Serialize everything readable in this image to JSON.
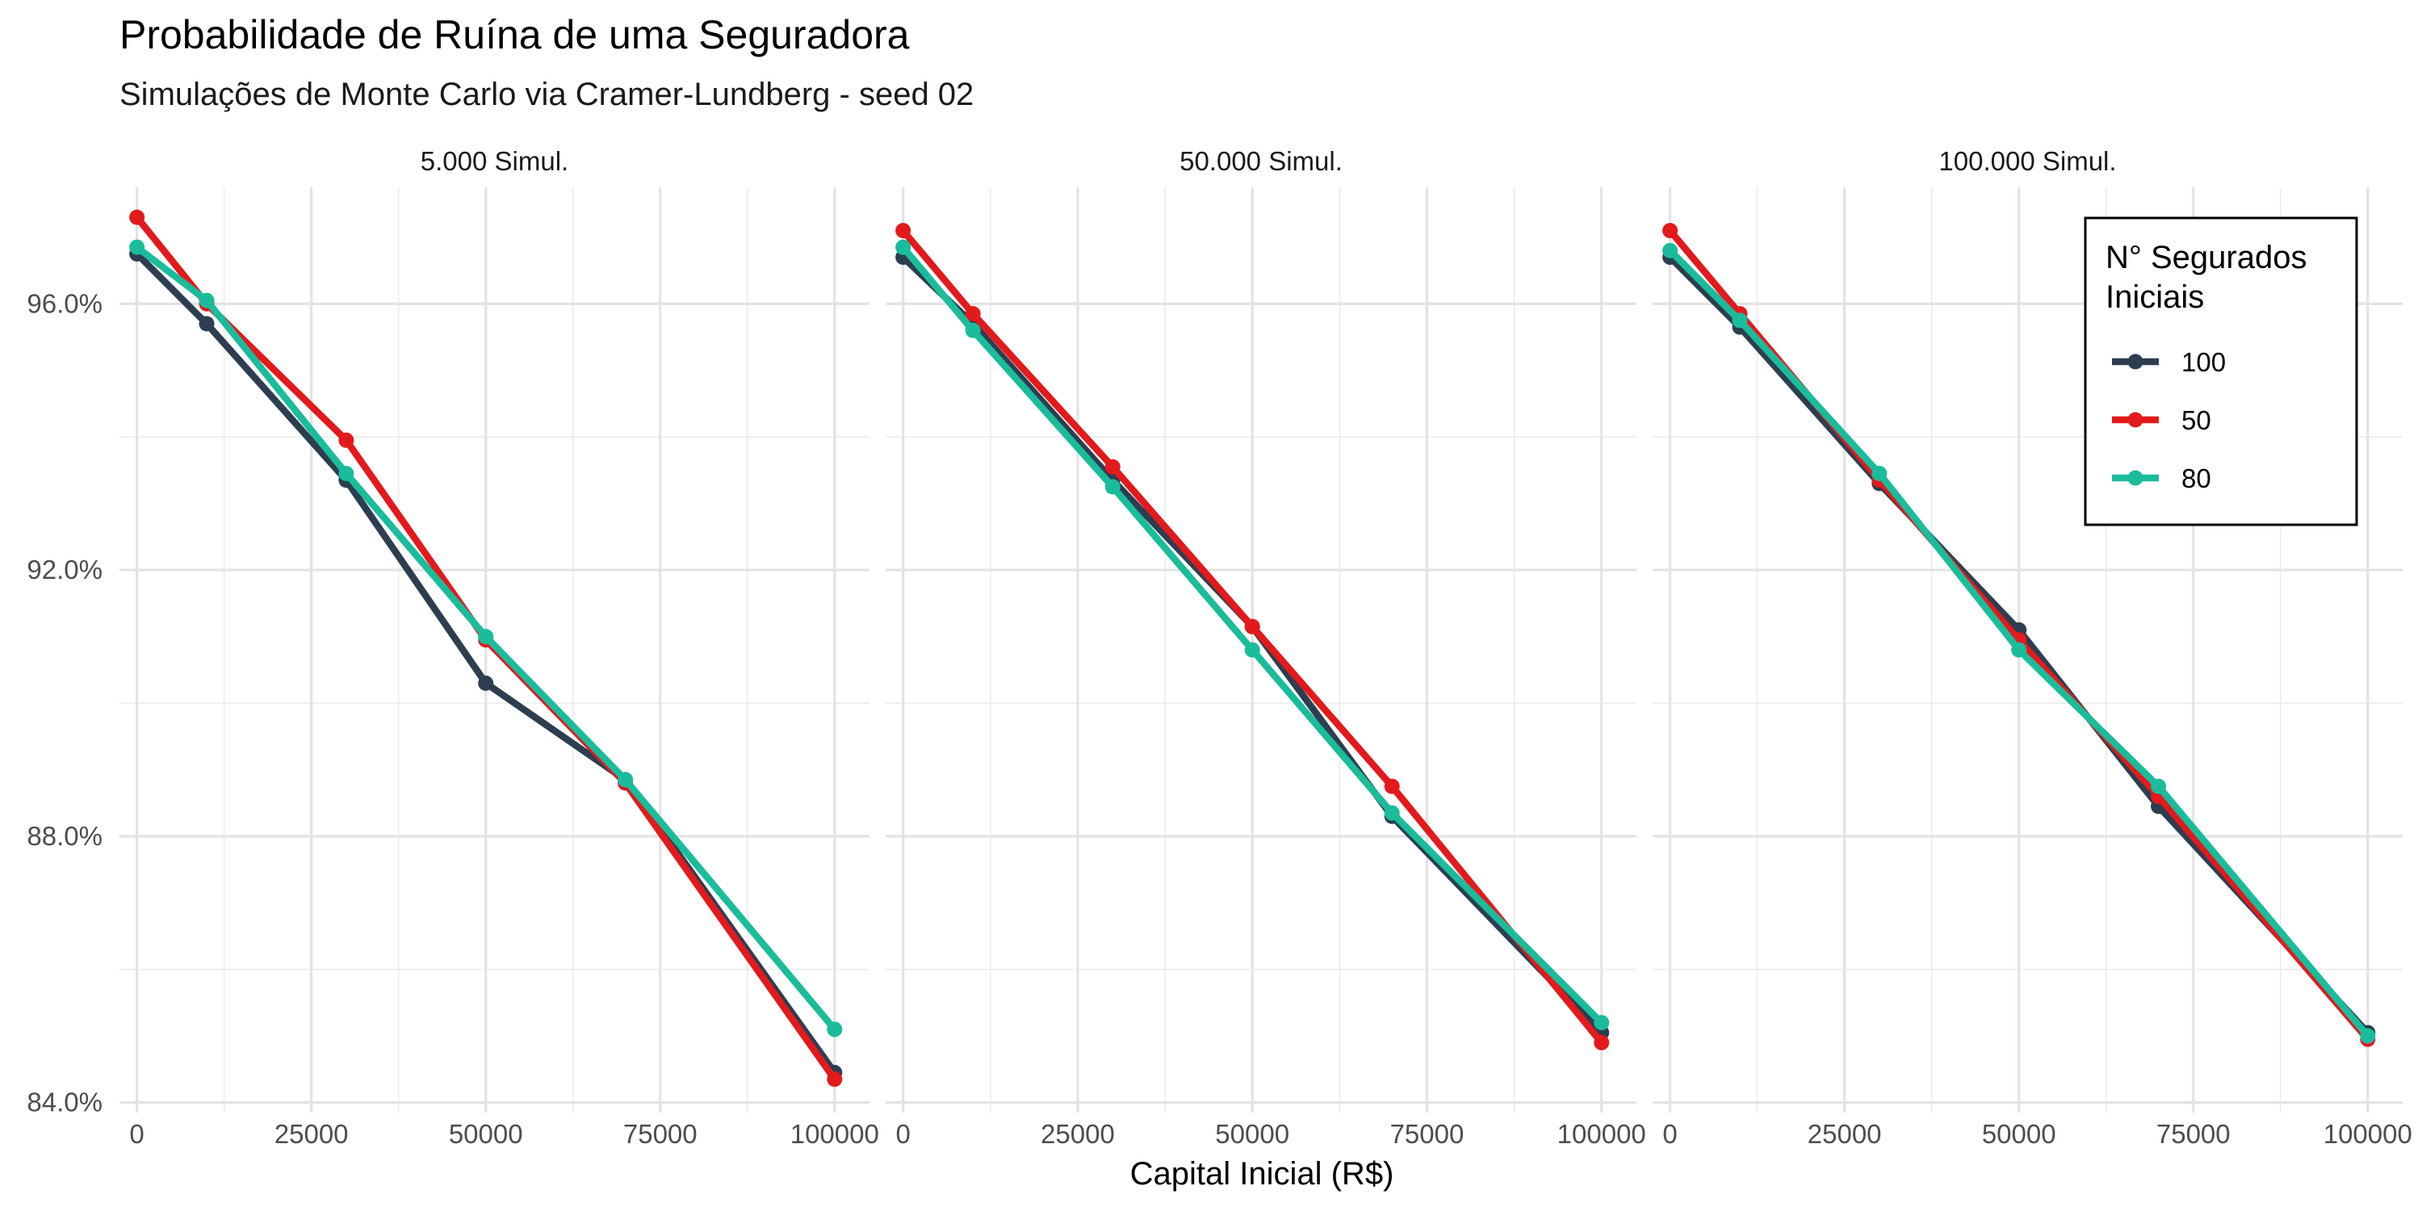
{
  "chart_data": {
    "type": "line",
    "title": "Probabilidade de Ruína de uma Seguradora",
    "subtitle": "Simulações de Monte Carlo via Cramer-Lundberg - seed 02",
    "xlabel": "Capital Inicial (R$)",
    "ylabel": "",
    "x": [
      0,
      10000,
      30000,
      50000,
      70000,
      100000
    ],
    "x_ticks": [
      0,
      25000,
      50000,
      75000,
      100000
    ],
    "x_tick_labels": [
      "0",
      "25000",
      "50000",
      "75000",
      "100000"
    ],
    "xlim": [
      -2500,
      105000
    ],
    "y_ticks": [
      0.84,
      0.88,
      0.92,
      0.96
    ],
    "y_tick_labels": [
      "84.0%",
      "88.0%",
      "92.0%",
      "96.0%"
    ],
    "ylim": [
      0.8385,
      0.9775
    ],
    "grid": true,
    "legend": {
      "title_line1": "N° Segurados",
      "title_line2": "Iniciais",
      "position": "top-right",
      "entries": [
        {
          "label": "100",
          "color": "#2c3e50"
        },
        {
          "label": "50",
          "color": "#e31a1c"
        },
        {
          "label": "80",
          "color": "#1abc9c"
        }
      ]
    },
    "panels": [
      {
        "label": "5.000 Simul.",
        "series": [
          {
            "name": "100",
            "color": "#2c3e50",
            "values": [
              0.9675,
              0.957,
              0.9335,
              0.903,
              0.8885,
              0.8445
            ]
          },
          {
            "name": "50",
            "color": "#e31a1c",
            "values": [
              0.973,
              0.96,
              0.9395,
              0.9095,
              0.888,
              0.8435
            ]
          },
          {
            "name": "80",
            "color": "#1abc9c",
            "values": [
              0.9685,
              0.9605,
              0.9345,
              0.91,
              0.8885,
              0.851
            ]
          }
        ]
      },
      {
        "label": "50.000 Simul.",
        "series": [
          {
            "name": "100",
            "color": "#2c3e50",
            "values": [
              0.967,
              0.957,
              0.9335,
              0.9115,
              0.883,
              0.8505
            ]
          },
          {
            "name": "50",
            "color": "#e31a1c",
            "values": [
              0.971,
              0.9585,
              0.9355,
              0.9115,
              0.8875,
              0.849
            ]
          },
          {
            "name": "80",
            "color": "#1abc9c",
            "values": [
              0.9685,
              0.956,
              0.9325,
              0.908,
              0.8835,
              0.852
            ]
          }
        ]
      },
      {
        "label": "100.000 Simul.",
        "series": [
          {
            "name": "100",
            "color": "#2c3e50",
            "values": [
              0.967,
              0.9565,
              0.933,
              0.911,
              0.8845,
              0.8505
            ]
          },
          {
            "name": "50",
            "color": "#e31a1c",
            "values": [
              0.971,
              0.9585,
              0.9335,
              0.9095,
              0.886,
              0.8495
            ]
          },
          {
            "name": "80",
            "color": "#1abc9c",
            "values": [
              0.968,
              0.9575,
              0.9345,
              0.908,
              0.8875,
              0.85
            ]
          }
        ]
      }
    ]
  }
}
